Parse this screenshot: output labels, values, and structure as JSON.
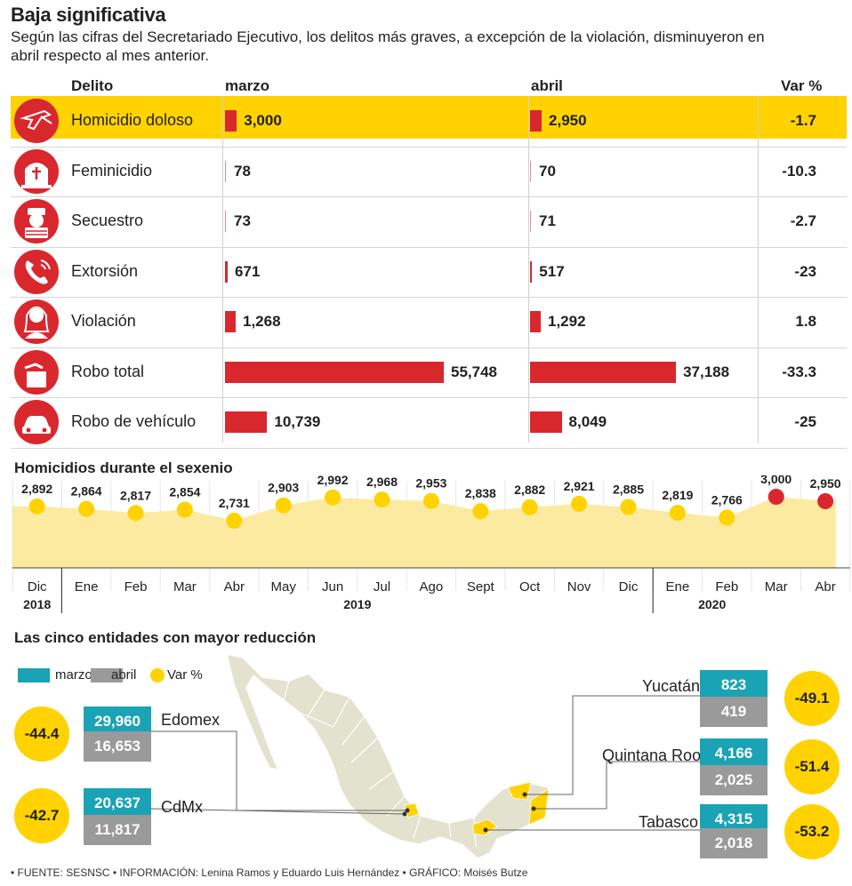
{
  "title": "Baja significativa",
  "subtitle": "Según las cifras del Secretariado Ejecutivo, los delitos más graves, a excepción de la violación, disminuyeron en abril respecto al mes anterior.",
  "table": {
    "headers": {
      "delito": "Delito",
      "marzo": "marzo",
      "abril": "abril",
      "var": "Var %"
    },
    "rows": [
      {
        "label": "Homicidio doloso",
        "marzo": "3,000",
        "abril": "2,950",
        "var": "-1.7",
        "marzo_v": 3000,
        "abril_v": 2950,
        "icon": "gun-icon",
        "highlight": true
      },
      {
        "label": "Feminicidio",
        "marzo": "78",
        "abril": "70",
        "var": "-10.3",
        "marzo_v": 78,
        "abril_v": 70,
        "icon": "grave-icon",
        "highlight": false
      },
      {
        "label": "Secuestro",
        "marzo": "73",
        "abril": "71",
        "var": "-2.7",
        "marzo_v": 73,
        "abril_v": 71,
        "icon": "kidnapped-person-icon",
        "highlight": false
      },
      {
        "label": "Extorsión",
        "marzo": "671",
        "abril": "517",
        "var": "-23",
        "marzo_v": 671,
        "abril_v": 517,
        "icon": "phone-icon",
        "highlight": false
      },
      {
        "label": "Violación",
        "marzo": "1,268",
        "abril": "1,292",
        "var": "1.8",
        "marzo_v": 1268,
        "abril_v": 1292,
        "icon": "woman-icon",
        "highlight": false
      },
      {
        "label": "Robo total",
        "marzo": "55,748",
        "abril": "37,188",
        "var": "-33.3",
        "marzo_v": 55748,
        "abril_v": 37188,
        "icon": "bag-theft-icon",
        "highlight": false
      },
      {
        "label": "Robo de vehículo",
        "marzo": "10,739",
        "abril": "8,049",
        "var": "-25",
        "marzo_v": 10739,
        "abril_v": 8049,
        "icon": "car-icon",
        "highlight": false
      }
    ]
  },
  "sexenio": {
    "title": "Homicidios durante el sexenio",
    "years": [
      "2018",
      "2019",
      "2020"
    ]
  },
  "chart_data": {
    "type": "area",
    "title": "Homicidios durante el sexenio",
    "categories": [
      "Dic",
      "Ene",
      "Feb",
      "Mar",
      "Abr",
      "May",
      "Jun",
      "Jul",
      "Ago",
      "Sept",
      "Oct",
      "Nov",
      "Dic",
      "Ene",
      "Feb",
      "Mar",
      "Abr"
    ],
    "labels": [
      "2,892",
      "2,864",
      "2,817",
      "2,854",
      "2,731",
      "2,903",
      "2,992",
      "2,968",
      "2,953",
      "2,838",
      "2,882",
      "2,921",
      "2,885",
      "2,819",
      "2,766",
      "3,000",
      "2,950"
    ],
    "values": [
      2892,
      2864,
      2817,
      2854,
      2731,
      2903,
      2992,
      2968,
      2953,
      2838,
      2882,
      2921,
      2885,
      2819,
      2766,
      3000,
      2950
    ],
    "highlighted_last": 2,
    "ylim": [
      2200,
      3200
    ]
  },
  "entidades": {
    "title": "Las cinco entidades con mayor reducción",
    "legend": {
      "marzo": "marzo",
      "abril": "abril",
      "var": "Var %"
    },
    "states": [
      {
        "name": "Edomex",
        "marzo": "29,960",
        "abril": "16,653",
        "var": "-44.4"
      },
      {
        "name": "CdMx",
        "marzo": "20,637",
        "abril": "11,817",
        "var": "-42.7"
      },
      {
        "name": "Yucatán",
        "marzo": "823",
        "abril": "419",
        "var": "-49.1"
      },
      {
        "name": "Quintana Roo",
        "marzo": "4,166",
        "abril": "2,025",
        "var": "-51.4"
      },
      {
        "name": "Tabasco",
        "marzo": "4,315",
        "abril": "2,018",
        "var": "-53.2"
      }
    ]
  },
  "colors": {
    "red": "#d9272e",
    "yellow": "#ffd200",
    "teal": "#1aa3b5",
    "grey": "#9a9a9a",
    "area": "#fbeaa0"
  },
  "footer": "• FUENTE: SESNSC • INFORMACIÓN: Lenina Ramos y Eduardo Luis Hernández • GRÁFICO: Moisés Butze"
}
